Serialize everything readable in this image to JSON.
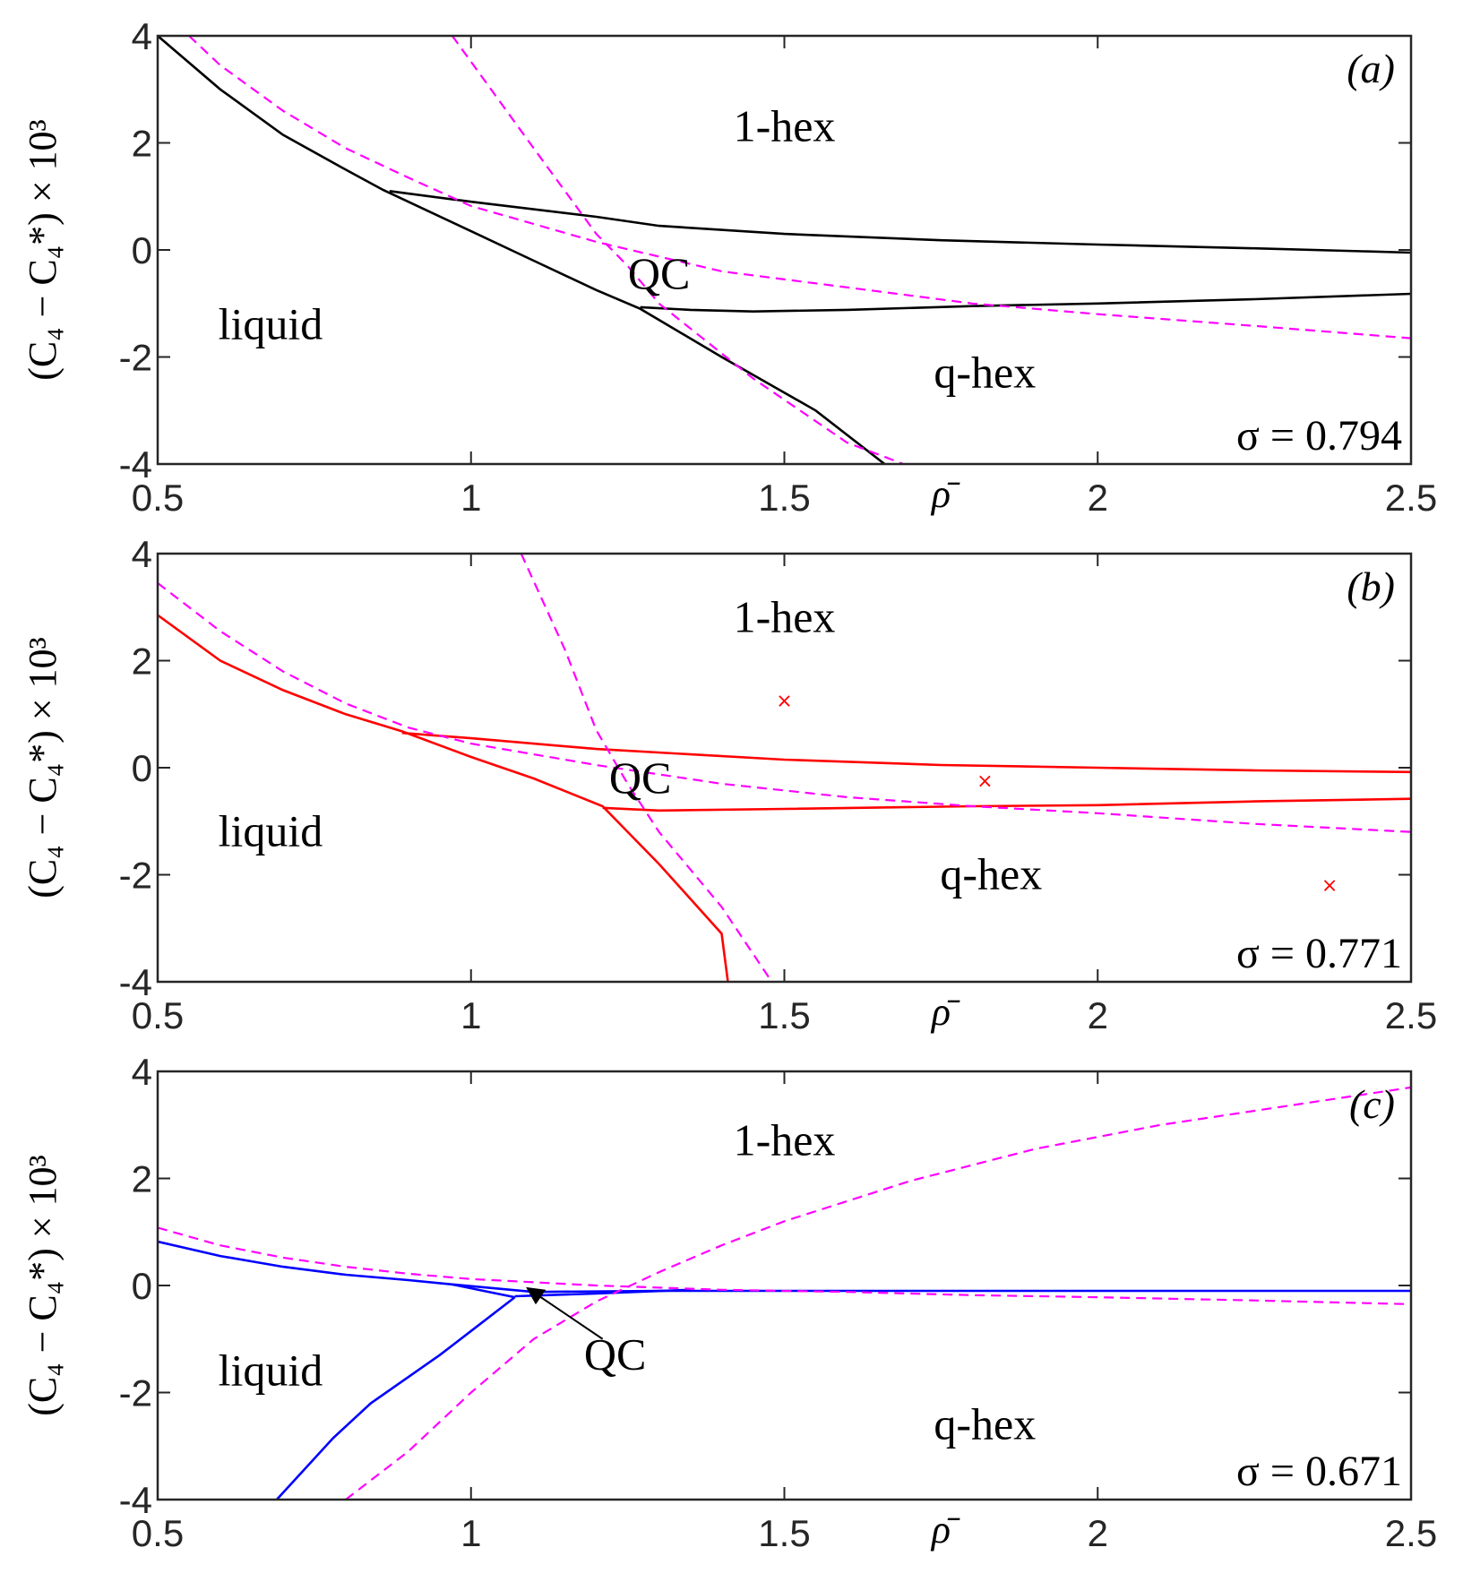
{
  "chart_data": [
    {
      "type": "line",
      "panel": "(a)",
      "sigma_label": "σ = 0.794",
      "xlabel": "ρ̄",
      "ylabel": "(C₄ − C₄*) × 10³",
      "xlim": [
        0.5,
        2.5
      ],
      "ylim": [
        -4,
        4
      ],
      "x_ticks": [
        "0.5",
        "1",
        "1.5",
        "2",
        "2.5"
      ],
      "y_ticks": [
        "4",
        "2",
        "0",
        "-2",
        "-4"
      ],
      "regions": [
        {
          "label": "1-hex",
          "x": 1.5,
          "y": 2.3
        },
        {
          "label": "liquid",
          "x": 0.68,
          "y": -1.4
        },
        {
          "label": "q-hex",
          "x": 1.82,
          "y": -2.3
        },
        {
          "label": "QC",
          "x": 1.3,
          "y": -0.45
        }
      ],
      "series": [
        {
          "name": "liquid boundary",
          "color": "#000000",
          "dash": false,
          "points": [
            [
              0.5,
              4.0
            ],
            [
              0.6,
              3.0
            ],
            [
              0.7,
              2.15
            ],
            [
              0.8,
              1.5
            ],
            [
              0.86,
              1.12
            ],
            [
              1.0,
              0.35
            ],
            [
              1.1,
              -0.2
            ],
            [
              1.2,
              -0.75
            ],
            [
              1.27,
              -1.1
            ],
            [
              1.4,
              -2.0
            ],
            [
              1.55,
              -3.0
            ],
            [
              1.66,
              -4.0
            ]
          ]
        },
        {
          "name": "1-hex boundary",
          "color": "#000000",
          "dash": false,
          "points": [
            [
              0.87,
              1.1
            ],
            [
              1.0,
              0.9
            ],
            [
              1.2,
              0.62
            ],
            [
              1.3,
              0.45
            ],
            [
              1.5,
              0.3
            ],
            [
              1.75,
              0.18
            ],
            [
              2.0,
              0.1
            ],
            [
              2.25,
              0.03
            ],
            [
              2.5,
              -0.05
            ]
          ]
        },
        {
          "name": "q-hex boundary",
          "color": "#000000",
          "dash": false,
          "points": [
            [
              1.27,
              -1.07
            ],
            [
              1.35,
              -1.12
            ],
            [
              1.45,
              -1.15
            ],
            [
              1.6,
              -1.12
            ],
            [
              1.8,
              -1.05
            ],
            [
              2.0,
              -1.0
            ],
            [
              2.25,
              -0.92
            ],
            [
              2.5,
              -0.82
            ]
          ]
        },
        {
          "name": "dashed steep",
          "color": "#ff00ff",
          "dash": true,
          "points": [
            [
              0.97,
              4.0
            ],
            [
              1.1,
              1.9
            ],
            [
              1.2,
              0.3
            ],
            [
              1.25,
              -0.3
            ],
            [
              1.3,
              -1.0
            ],
            [
              1.45,
              -2.4
            ],
            [
              1.6,
              -3.6
            ],
            [
              1.69,
              -4.0
            ]
          ]
        },
        {
          "name": "dashed shallow",
          "color": "#ff00ff",
          "dash": true,
          "points": [
            [
              0.55,
              4.0
            ],
            [
              0.6,
              3.45
            ],
            [
              0.7,
              2.6
            ],
            [
              0.8,
              1.9
            ],
            [
              0.9,
              1.35
            ],
            [
              1.0,
              0.82
            ],
            [
              1.2,
              0.15
            ],
            [
              1.4,
              -0.4
            ],
            [
              1.6,
              -0.7
            ],
            [
              1.8,
              -1.0
            ],
            [
              2.0,
              -1.2
            ],
            [
              2.25,
              -1.42
            ],
            [
              2.5,
              -1.65
            ]
          ]
        }
      ],
      "markers": []
    },
    {
      "type": "line",
      "panel": "(b)",
      "sigma_label": "σ = 0.771",
      "xlabel": "ρ̄",
      "ylabel": "(C₄ − C₄*) × 10³",
      "xlim": [
        0.5,
        2.5
      ],
      "ylim": [
        -4,
        4
      ],
      "x_ticks": [
        "0.5",
        "1",
        "1.5",
        "2",
        "2.5"
      ],
      "y_ticks": [
        "4",
        "2",
        "0",
        "-2",
        "-4"
      ],
      "regions": [
        {
          "label": "1-hex",
          "x": 1.5,
          "y": 2.8
        },
        {
          "label": "liquid",
          "x": 0.68,
          "y": -1.2
        },
        {
          "label": "q-hex",
          "x": 1.83,
          "y": -2.0
        },
        {
          "label": "QC",
          "x": 1.27,
          "y": -0.2
        }
      ],
      "series": [
        {
          "name": "liquid boundary",
          "color": "#ff0000",
          "dash": false,
          "points": [
            [
              0.5,
              2.85
            ],
            [
              0.6,
              2.0
            ],
            [
              0.7,
              1.45
            ],
            [
              0.8,
              1.0
            ],
            [
              0.89,
              0.68
            ],
            [
              1.0,
              0.2
            ],
            [
              1.1,
              -0.2
            ],
            [
              1.21,
              -0.72
            ],
            [
              1.3,
              -1.8
            ],
            [
              1.4,
              -3.1
            ],
            [
              1.41,
              -4.0
            ]
          ]
        },
        {
          "name": "1-hex boundary",
          "color": "#ff0000",
          "dash": false,
          "points": [
            [
              0.89,
              0.65
            ],
            [
              1.0,
              0.55
            ],
            [
              1.2,
              0.35
            ],
            [
              1.5,
              0.15
            ],
            [
              1.75,
              0.05
            ],
            [
              2.0,
              0.0
            ],
            [
              2.25,
              -0.05
            ],
            [
              2.5,
              -0.08
            ]
          ]
        },
        {
          "name": "q-hex boundary",
          "color": "#ff0000",
          "dash": false,
          "points": [
            [
              1.21,
              -0.75
            ],
            [
              1.3,
              -0.8
            ],
            [
              1.5,
              -0.77
            ],
            [
              1.8,
              -0.72
            ],
            [
              2.0,
              -0.7
            ],
            [
              2.25,
              -0.63
            ],
            [
              2.5,
              -0.58
            ]
          ]
        },
        {
          "name": "dashed steep",
          "color": "#ff00ff",
          "dash": true,
          "points": [
            [
              1.08,
              4.0
            ],
            [
              1.15,
              2.2
            ],
            [
              1.2,
              0.7
            ],
            [
              1.25,
              -0.3
            ],
            [
              1.3,
              -1.2
            ],
            [
              1.4,
              -2.6
            ],
            [
              1.48,
              -4.0
            ]
          ]
        },
        {
          "name": "dashed shallow",
          "color": "#ff00ff",
          "dash": true,
          "points": [
            [
              0.5,
              3.45
            ],
            [
              0.6,
              2.55
            ],
            [
              0.7,
              1.8
            ],
            [
              0.8,
              1.2
            ],
            [
              0.9,
              0.75
            ],
            [
              1.0,
              0.45
            ],
            [
              1.2,
              0.05
            ],
            [
              1.4,
              -0.3
            ],
            [
              1.6,
              -0.55
            ],
            [
              1.8,
              -0.72
            ],
            [
              2.0,
              -0.85
            ],
            [
              2.25,
              -1.05
            ],
            [
              2.5,
              -1.2
            ]
          ]
        }
      ],
      "markers": [
        {
          "x": 1.5,
          "y": 1.25,
          "symbol": "×",
          "color": "#ff0000"
        },
        {
          "x": 1.82,
          "y": -0.25,
          "symbol": "×",
          "color": "#ff0000"
        },
        {
          "x": 2.37,
          "y": -2.2,
          "symbol": "×",
          "color": "#ff0000"
        }
      ]
    },
    {
      "type": "line",
      "panel": "(c)",
      "sigma_label": "σ = 0.671",
      "xlabel": "ρ̄",
      "ylabel": "(C₄ − C₄*) × 10³",
      "xlim": [
        0.5,
        2.5
      ],
      "ylim": [
        -4,
        4
      ],
      "x_ticks": [
        "0.5",
        "1",
        "1.5",
        "2",
        "2.5"
      ],
      "y_ticks": [
        "4",
        "2",
        "0",
        "-2",
        "-4"
      ],
      "regions": [
        {
          "label": "1-hex",
          "x": 1.5,
          "y": 2.7
        },
        {
          "label": "liquid",
          "x": 0.68,
          "y": -1.6
        },
        {
          "label": "q-hex",
          "x": 1.82,
          "y": -2.6
        },
        {
          "label": "QC",
          "x": 1.23,
          "y": -1.3
        }
      ],
      "annotation_arrow": {
        "from": [
          1.21,
          -1.0
        ],
        "to": [
          1.09,
          -0.05
        ]
      },
      "series": [
        {
          "name": "liquid boundary",
          "color": "#0000ff",
          "dash": false,
          "points": [
            [
              0.5,
              0.82
            ],
            [
              0.6,
              0.55
            ],
            [
              0.7,
              0.35
            ],
            [
              0.8,
              0.2
            ],
            [
              0.9,
              0.1
            ],
            [
              0.97,
              0.02
            ],
            [
              1.02,
              -0.1
            ],
            [
              1.07,
              -0.22
            ]
          ]
        },
        {
          "name": "low boundary",
          "color": "#0000ff",
          "dash": false,
          "points": [
            [
              1.07,
              -0.22
            ],
            [
              1.0,
              -0.85
            ],
            [
              0.95,
              -1.3
            ],
            [
              0.84,
              -2.2
            ],
            [
              0.78,
              -2.85
            ],
            [
              0.69,
              -4.0
            ]
          ]
        },
        {
          "name": "1-hex boundary",
          "color": "#0000ff",
          "dash": false,
          "points": [
            [
              0.97,
              0.02
            ],
            [
              1.1,
              -0.12
            ],
            [
              1.3,
              -0.1
            ],
            [
              1.6,
              -0.1
            ],
            [
              2.0,
              -0.1
            ],
            [
              2.5,
              -0.1
            ]
          ]
        },
        {
          "name": "q-hex boundary",
          "color": "#0000ff",
          "dash": false,
          "points": [
            [
              1.07,
              -0.2
            ],
            [
              1.2,
              -0.15
            ],
            [
              1.35,
              -0.08
            ]
          ]
        },
        {
          "name": "dashed shallow",
          "color": "#ff00ff",
          "dash": true,
          "points": [
            [
              0.5,
              1.08
            ],
            [
              0.6,
              0.75
            ],
            [
              0.7,
              0.52
            ],
            [
              0.8,
              0.35
            ],
            [
              0.9,
              0.22
            ],
            [
              1.0,
              0.12
            ],
            [
              1.2,
              0.0
            ],
            [
              1.4,
              -0.08
            ],
            [
              1.6,
              -0.12
            ],
            [
              1.8,
              -0.18
            ],
            [
              2.0,
              -0.22
            ],
            [
              2.25,
              -0.28
            ],
            [
              2.5,
              -0.35
            ]
          ]
        },
        {
          "name": "dashed rising",
          "color": "#ff00ff",
          "dash": true,
          "points": [
            [
              0.8,
              -4.0
            ],
            [
              0.9,
              -3.1
            ],
            [
              1.0,
              -2.0
            ],
            [
              1.1,
              -1.0
            ],
            [
              1.2,
              -0.3
            ],
            [
              1.3,
              0.25
            ],
            [
              1.4,
              0.75
            ],
            [
              1.5,
              1.2
            ],
            [
              1.7,
              1.95
            ],
            [
              1.9,
              2.55
            ],
            [
              2.1,
              3.0
            ],
            [
              2.3,
              3.35
            ],
            [
              2.5,
              3.7
            ]
          ]
        }
      ],
      "markers": []
    }
  ]
}
